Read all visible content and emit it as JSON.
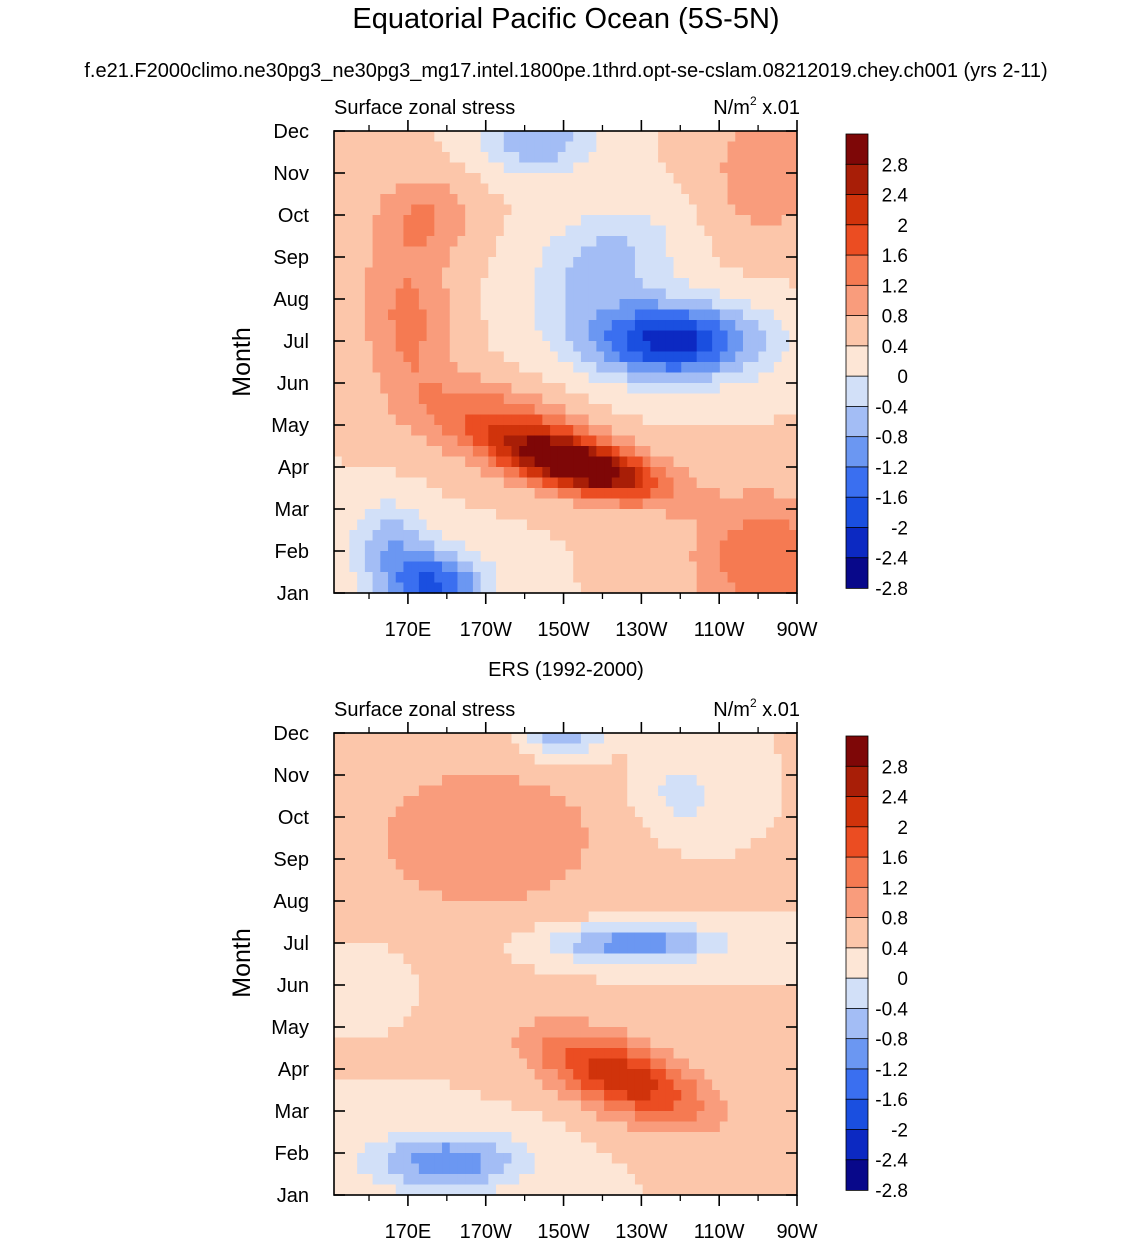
{
  "figure": {
    "title": "Equatorial Pacific Ocean (5S-5N)",
    "subtitle": "f.e21.F2000climo.ne30pg3_ne30pg3_mg17.intel.1800pe.1thrd.opt-se-cslam.08212019.chey.ch001 (yrs 2-11)"
  },
  "colors": {
    "palette": [
      "#08088a",
      "#0c29c2",
      "#1a4fe0",
      "#3a6ff0",
      "#6b97f2",
      "#a3bdf5",
      "#d2e0f8",
      "#fde6d6",
      "#fcc6aa",
      "#f99c7c",
      "#f57a52",
      "#eb4d22",
      "#d0330b",
      "#a81e07",
      "#7e0707"
    ]
  },
  "chart_data": [
    {
      "type": "heatmap",
      "plot_id": "model",
      "panel_title": "",
      "left_label": "Surface zonal stress",
      "right_label": "N/m",
      "right_label_sup": "2",
      "right_label_suffix": " x.01",
      "xlabel": "",
      "ylabel": "Month",
      "x_ticks": [
        "170E",
        "170W",
        "150W",
        "130W",
        "110W",
        "90W"
      ],
      "x_tick_values": [
        170,
        190,
        210,
        230,
        250,
        270
      ],
      "xlim": [
        151,
        270
      ],
      "y_ticks": [
        "Jan",
        "Feb",
        "Mar",
        "Apr",
        "May",
        "Jun",
        "Jul",
        "Aug",
        "Sep",
        "Oct",
        "Nov",
        "Dec"
      ],
      "ylim": [
        1,
        12
      ],
      "colorbar_levels": [
        -2.8,
        -2.4,
        -2,
        -1.6,
        -1.2,
        -0.8,
        -0.4,
        0,
        0.4,
        0.8,
        1.2,
        1.6,
        2,
        2.4,
        2.8
      ],
      "colorbar_labels": [
        "2.8",
        "2.4",
        "2",
        "1.6",
        "1.2",
        "0.8",
        "0.4",
        "0",
        "-0.4",
        "-0.8",
        "-1.2",
        "-1.6",
        "-2",
        "-2.4",
        "-2.8"
      ],
      "features": [
        {
          "lon": 215,
          "month": 4.0,
          "amp": 3.0,
          "slon": 20,
          "smon": 0.65,
          "tilt": -0.02
        },
        {
          "lon": 195,
          "month": 5.0,
          "amp": 1.2,
          "slon": 20,
          "smon": 0.9,
          "tilt": -0.02
        },
        {
          "lon": 170,
          "month": 7.5,
          "amp": 0.9,
          "slon": 12,
          "smon": 2.2,
          "tilt": -0.03
        },
        {
          "lon": 175,
          "month": 10.0,
          "amp": 0.7,
          "slon": 12,
          "smon": 1.0,
          "tilt": 0
        },
        {
          "lon": 238,
          "month": 7.0,
          "amp": -2.6,
          "slon": 22,
          "smon": 0.9,
          "tilt": 0
        },
        {
          "lon": 220,
          "month": 8.8,
          "amp": -1.0,
          "slon": 18,
          "smon": 1.3,
          "tilt": 0.02
        },
        {
          "lon": 203,
          "month": 11.8,
          "amp": -1.2,
          "slon": 14,
          "smon": 0.8,
          "tilt": 0
        },
        {
          "lon": 177,
          "month": 1.2,
          "amp": -2.0,
          "slon": 13,
          "smon": 0.8,
          "tilt": 0
        },
        {
          "lon": 165,
          "month": 2.2,
          "amp": -1.0,
          "slon": 10,
          "smon": 1.0,
          "tilt": 0
        },
        {
          "lon": 262,
          "month": 1.8,
          "amp": 1.2,
          "slon": 18,
          "smon": 1.5,
          "tilt": 0
        },
        {
          "lon": 262,
          "month": 11.0,
          "amp": 0.7,
          "slon": 15,
          "smon": 1.6,
          "tilt": 0
        }
      ]
    },
    {
      "type": "heatmap",
      "plot_id": "ers",
      "panel_title": "ERS (1992-2000)",
      "left_label": "Surface zonal stress",
      "right_label": "N/m",
      "right_label_sup": "2",
      "right_label_suffix": " x.01",
      "xlabel": "",
      "ylabel": "Month",
      "x_ticks": [
        "170E",
        "170W",
        "150W",
        "130W",
        "110W",
        "90W"
      ],
      "x_tick_values": [
        170,
        190,
        210,
        230,
        250,
        270
      ],
      "xlim": [
        151,
        270
      ],
      "y_ticks": [
        "Jan",
        "Feb",
        "Mar",
        "Apr",
        "May",
        "Jun",
        "Jul",
        "Aug",
        "Sep",
        "Oct",
        "Nov",
        "Dec"
      ],
      "ylim": [
        1,
        12
      ],
      "colorbar_levels": [
        -2.8,
        -2.4,
        -2,
        -1.6,
        -1.2,
        -0.8,
        -0.4,
        0,
        0.4,
        0.8,
        1.2,
        1.6,
        2,
        2.4,
        2.8
      ],
      "colorbar_labels": [
        "2.8",
        "2.4",
        "2",
        "1.6",
        "1.2",
        "0.8",
        "0.4",
        "0",
        "-0.4",
        "-0.8",
        "-1.2",
        "-1.6",
        "-2",
        "-2.4",
        "-2.8"
      ],
      "features": [
        {
          "lon": 225,
          "month": 3.8,
          "amp": 1.9,
          "slon": 22,
          "smon": 0.9,
          "tilt": -0.03
        },
        {
          "lon": 190,
          "month": 9.5,
          "amp": 0.7,
          "slon": 35,
          "smon": 2.0,
          "tilt": 0
        },
        {
          "lon": 228,
          "month": 7.0,
          "amp": -1.5,
          "slon": 22,
          "smon": 0.45,
          "tilt": 0
        },
        {
          "lon": 210,
          "month": 11.9,
          "amp": -1.2,
          "slon": 10,
          "smon": 0.5,
          "tilt": 0
        },
        {
          "lon": 180,
          "month": 1.8,
          "amp": -1.5,
          "slon": 20,
          "smon": 0.7,
          "tilt": 0
        },
        {
          "lon": 240,
          "month": 10.5,
          "amp": -0.6,
          "slon": 12,
          "smon": 1.0,
          "tilt": 0
        },
        {
          "lon": 160,
          "month": 6.2,
          "amp": -0.4,
          "slon": 8,
          "smon": 0.6,
          "tilt": 0
        }
      ]
    }
  ]
}
